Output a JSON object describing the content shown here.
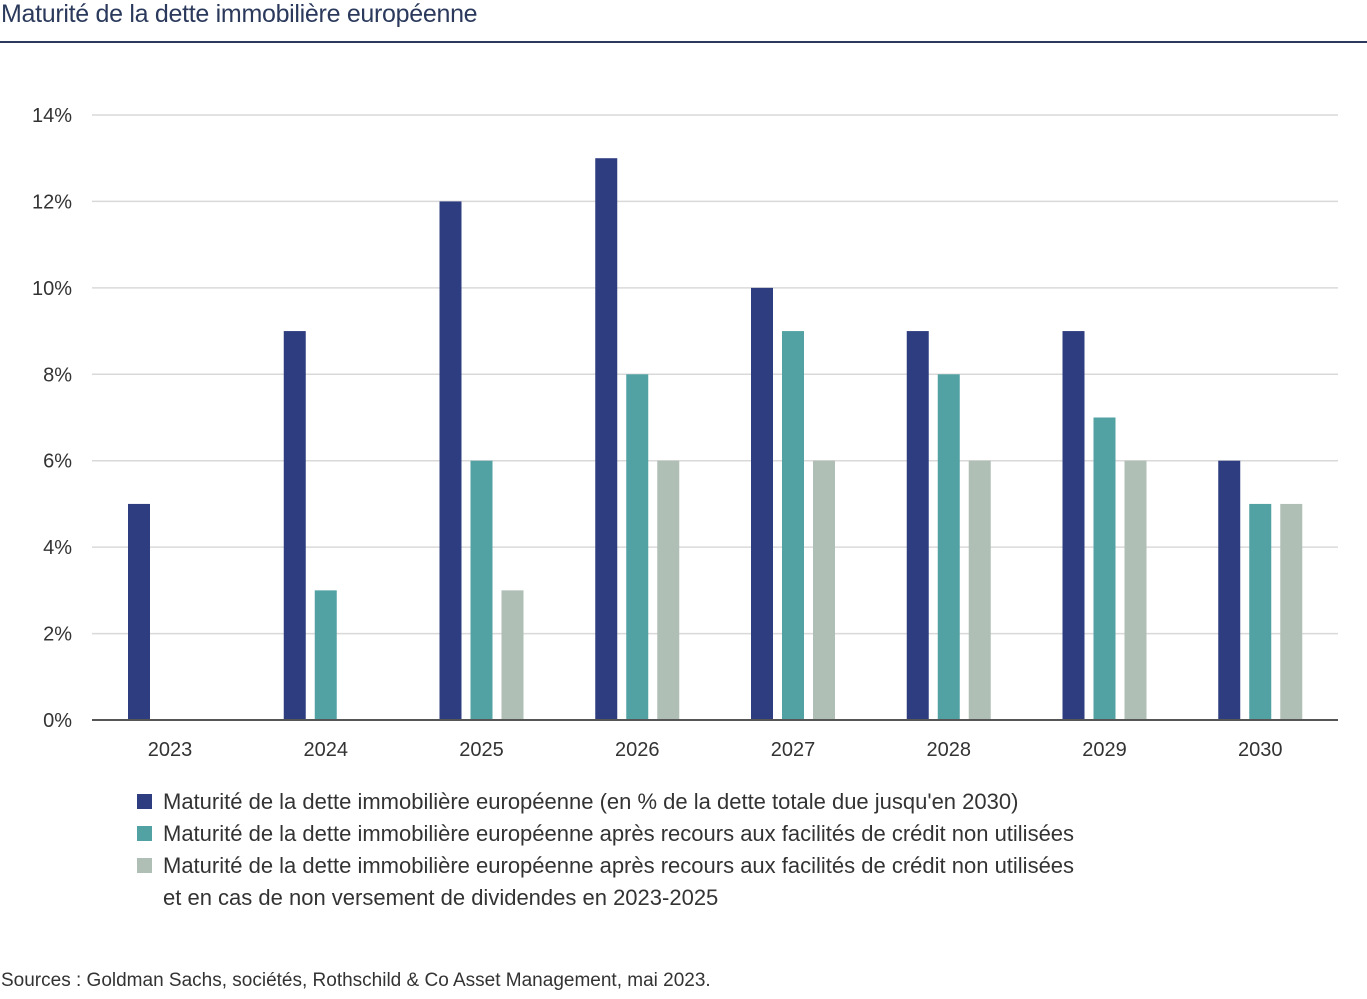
{
  "title": "Maturité de la dette immobilière européenne",
  "source": "Sources : Goldman Sachs, sociétés, Rothschild & Co Asset Management, mai 2023.",
  "chart_data": {
    "type": "bar",
    "categories": [
      "2023",
      "2024",
      "2025",
      "2026",
      "2027",
      "2028",
      "2029",
      "2030"
    ],
    "yticks": [
      "0%",
      "2%",
      "4%",
      "6%",
      "8%",
      "10%",
      "12%",
      "14%"
    ],
    "ylim": [
      0,
      14
    ],
    "grid": true,
    "legend_position": "bottom",
    "series": [
      {
        "name": "Maturité de la dette immobilière européenne (en % de la dette totale due jusqu'en 2030)",
        "color": "#2e3d80",
        "values": [
          5,
          9,
          12,
          13,
          10,
          9,
          9,
          6
        ]
      },
      {
        "name": "Maturité de la dette immobilière européenne après recours aux facilités de crédit non utilisées",
        "color": "#52a2a3",
        "values": [
          null,
          3,
          6,
          8,
          9,
          8,
          7,
          5
        ]
      },
      {
        "name_lines": [
          "Maturité de la dette immobilière européenne après recours aux facilités de crédit non utilisées",
          "et en cas de non versement de dividendes en 2023-2025"
        ],
        "color": "#afbfb6",
        "values": [
          null,
          null,
          3,
          6,
          6,
          6,
          6,
          5
        ]
      }
    ]
  }
}
